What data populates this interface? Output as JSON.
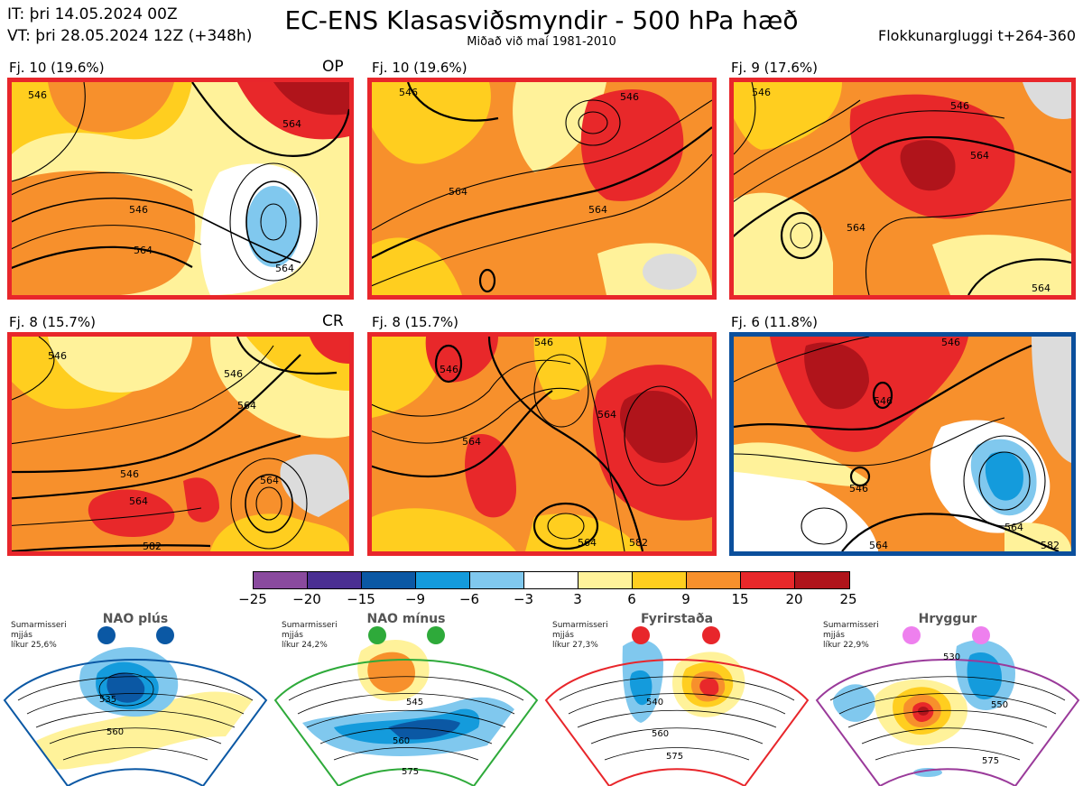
{
  "header": {
    "it": "IT: þri 14.05.2024 00Z",
    "vt": "VT: þri 28.05.2024 12Z  (+348h)",
    "title": "EC-ENS Klasasviðsmyndir - 500 hPa hæð",
    "subtitle": "Miðað við maí 1981-2010",
    "window": "Flokkunargluggi t+264-360"
  },
  "panels": [
    {
      "label": "Fj. 10 (19.6%)",
      "tag": "OP",
      "frame": "#e8262b",
      "contours": [
        "546",
        "564",
        "546",
        "564",
        "564"
      ]
    },
    {
      "label": "Fj. 10 (19.6%)",
      "tag": "",
      "frame": "#e8262b",
      "contours": [
        "546",
        "564",
        "564",
        "546"
      ]
    },
    {
      "label": "Fj. 9 (17.6%)",
      "tag": "",
      "frame": "#e8262b",
      "contours": [
        "546",
        "546",
        "564",
        "564",
        "564"
      ]
    },
    {
      "label": "Fj. 8 (15.7%)",
      "tag": "CR",
      "frame": "#e8262b",
      "contours": [
        "546",
        "546",
        "564",
        "546",
        "564",
        "564",
        "582"
      ]
    },
    {
      "label": "Fj. 8 (15.7%)",
      "tag": "",
      "frame": "#e8262b",
      "contours": [
        "546",
        "546",
        "564",
        "564",
        "564",
        "582"
      ]
    },
    {
      "label": "Fj. 6 (11.8%)",
      "tag": "",
      "frame": "#0b4f9c",
      "contours": [
        "546",
        "546",
        "546",
        "564",
        "564",
        "582"
      ]
    }
  ],
  "colorbar": {
    "ticks": [
      "−25",
      "−20",
      "−15",
      "−9",
      "−6",
      "−3",
      "3",
      "6",
      "9",
      "15",
      "20",
      "25"
    ],
    "colors": [
      "#8a4a9e",
      "#4a2f92",
      "#0b58a4",
      "#149bdc",
      "#80c8ee",
      "#ffffff",
      "#fff29a",
      "#ffce1f",
      "#f7902c",
      "#e8282a",
      "#b0141b"
    ]
  },
  "regimes": [
    {
      "name": "NAO plús",
      "note": [
        "Sumarmisseri",
        "mjjás",
        "líkur 25,6%"
      ],
      "frame": "#0b58a4",
      "dot": "#0b58a4",
      "contours": [
        "535",
        "560"
      ]
    },
    {
      "name": "NAO mínus",
      "note": [
        "Sumarmisseri",
        "mjjás",
        "líkur 24,2%"
      ],
      "frame": "#2eaa3a",
      "dot": "#2eaa3a",
      "contours": [
        "545",
        "560",
        "575"
      ]
    },
    {
      "name": "Fyrirstaða",
      "note": [
        "Sumarmisseri",
        "mjjás",
        "líkur 27,3%"
      ],
      "frame": "#e8262b",
      "dot": "#e8262b",
      "contours": [
        "540",
        "560",
        "575"
      ]
    },
    {
      "name": "Hryggur",
      "note": [
        "Sumarmisseri",
        "mjjás",
        "líkur 22,9%"
      ],
      "frame": "#9a3a9a",
      "dot": "#ee80ee",
      "contours": [
        "530",
        "550",
        "575"
      ]
    }
  ]
}
